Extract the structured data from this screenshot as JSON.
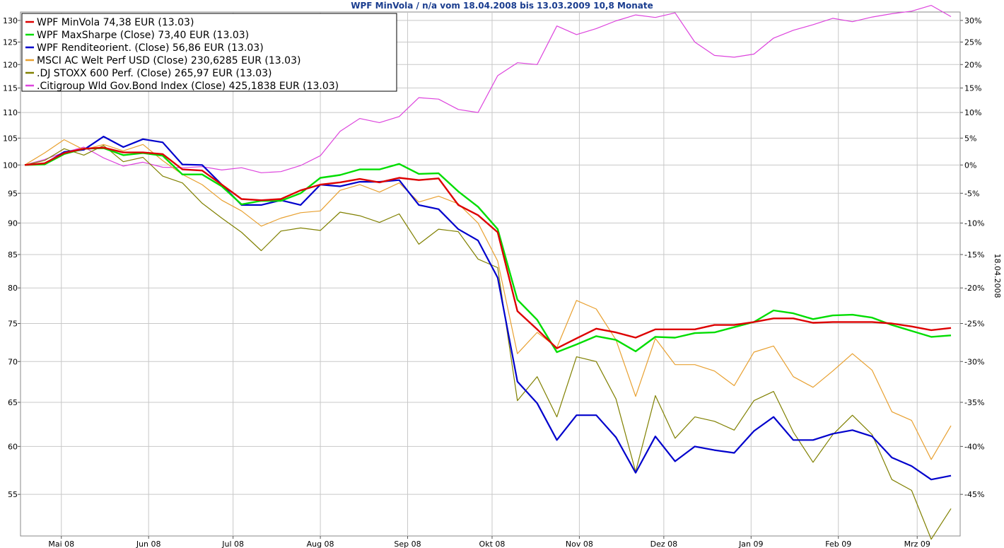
{
  "chart_data": {
    "type": "line",
    "title": "WPF MinVola / n/a vom 18.04.2008 bis 13.03.2009 10,8 Monate",
    "right_axis_label": "18.04.2008",
    "x_ticks": [
      "Mai 08",
      "Jun 08",
      "Jul 08",
      "Aug 08",
      "Sep 08",
      "Okt 08",
      "Nov 08",
      "Dez 08",
      "Jan 09",
      "Feb 09",
      "Mrz 09"
    ],
    "ylim": [
      51,
      132
    ],
    "y_scale": "log",
    "y_ticks": [
      55,
      60,
      65,
      70,
      75,
      80,
      85,
      90,
      95,
      100,
      105,
      110,
      115,
      120,
      125,
      130
    ],
    "y_right_ticks": [
      "-45%",
      "-40%",
      "-35%",
      "-30%",
      "-25%",
      "-20%",
      "-15%",
      "-10%",
      "-5%",
      "0%",
      "5%",
      "10%",
      "15%",
      "20%",
      "25%",
      "30%"
    ],
    "grid": true,
    "legend_position": "top-left",
    "x": [
      "2008-04-18",
      "2008-04-25",
      "2008-05-02",
      "2008-05-09",
      "2008-05-16",
      "2008-05-23",
      "2008-05-30",
      "2008-06-06",
      "2008-06-13",
      "2008-06-20",
      "2008-06-27",
      "2008-07-04",
      "2008-07-11",
      "2008-07-18",
      "2008-07-25",
      "2008-08-01",
      "2008-08-08",
      "2008-08-15",
      "2008-08-22",
      "2008-08-29",
      "2008-09-05",
      "2008-09-12",
      "2008-09-19",
      "2008-09-26",
      "2008-10-03",
      "2008-10-10",
      "2008-10-17",
      "2008-10-24",
      "2008-10-31",
      "2008-11-07",
      "2008-11-14",
      "2008-11-21",
      "2008-11-28",
      "2008-12-05",
      "2008-12-12",
      "2008-12-19",
      "2008-12-26",
      "2009-01-02",
      "2009-01-09",
      "2009-01-16",
      "2009-01-23",
      "2009-01-30",
      "2009-02-06",
      "2009-02-13",
      "2009-02-20",
      "2009-02-27",
      "2009-03-06",
      "2009-03-13"
    ],
    "series": [
      {
        "name": "WPF MinVola 74,38 EUR (13.03)",
        "color": "#dd0000",
        "width": 2.4,
        "values": [
          100,
          100.3,
          102.2,
          103,
          103.2,
          102.3,
          102.3,
          102,
          99.2,
          99,
          96.5,
          94,
          93.8,
          94,
          95.5,
          96.5,
          96.9,
          97.5,
          96.9,
          97.7,
          97.3,
          97.6,
          93,
          91.3,
          88.5,
          76.7,
          74.2,
          71.7,
          73,
          74.3,
          73.8,
          73.1,
          74.2,
          74.2,
          74.2,
          74.8,
          74.8,
          75.2,
          75.7,
          75.7,
          75.1,
          75.2,
          75.2,
          75.2,
          75,
          74.6,
          74.1,
          74.4
        ]
      },
      {
        "name": "WPF MaxSharpe (Close) 73,40 EUR (13.03)",
        "color": "#00dd00",
        "width": 2.4,
        "values": [
          100,
          100.1,
          102,
          103,
          103.1,
          101.8,
          102.2,
          101.7,
          98.3,
          98.3,
          96.2,
          93.1,
          93.7,
          93.7,
          95,
          97.7,
          98.2,
          99.2,
          99.2,
          100.2,
          98.4,
          98.5,
          95.3,
          92.7,
          89,
          78.3,
          75.5,
          71.2,
          72.2,
          73.3,
          72.8,
          71.3,
          73.2,
          73.1,
          73.7,
          73.8,
          74.5,
          75.2,
          76.8,
          76.4,
          75.6,
          76.1,
          76.2,
          75.8,
          74.8,
          74,
          73.2,
          73.4
        ]
      },
      {
        "name": "WPF Renditeorient. (Close) 56,86 EUR (13.03)",
        "color": "#0000cc",
        "width": 2.2,
        "values": [
          100,
          100.2,
          102.4,
          102.8,
          105.3,
          103.3,
          104.8,
          104.2,
          100.1,
          100,
          96.5,
          93,
          93,
          93.8,
          93,
          96.5,
          96.2,
          97,
          97,
          97.3,
          93,
          92.3,
          89,
          87.2,
          81.5,
          67.5,
          64.9,
          60.7,
          63.5,
          63.5,
          61,
          57.2,
          61.1,
          58.4,
          60,
          59.6,
          59.3,
          61.7,
          63.3,
          60.7,
          60.7,
          61.4,
          61.8,
          61.1,
          58.8,
          57.9,
          56.5,
          56.9
        ]
      },
      {
        "name": "MSCI AC Welt Perf USD (Close) 230,6285 EUR (13.03)",
        "color": "#e8a030",
        "width": 1.2,
        "values": [
          100,
          102.2,
          104.7,
          102.8,
          103.8,
          102.6,
          103.8,
          100.8,
          98.3,
          96.5,
          93.8,
          92,
          89.5,
          90.8,
          91.7,
          92,
          95.5,
          96.5,
          95.2,
          96.8,
          93.5,
          94.5,
          93.2,
          90,
          84,
          71,
          73.8,
          71.8,
          78.2,
          77,
          72.8,
          65.7,
          73,
          69.6,
          69.6,
          68.8,
          67,
          71.2,
          72,
          68.1,
          66.8,
          68.8,
          71,
          68.9,
          63.9,
          62.9,
          58.6,
          62.3
        ]
      },
      {
        "name": ".DJ STOXX 600 Perf. (Close) 265,97 EUR (13.03)",
        "color": "#808000",
        "width": 1.2,
        "values": [
          100,
          100.8,
          103,
          101.8,
          103.6,
          100.6,
          101.4,
          98,
          96.8,
          93.3,
          90.8,
          88.5,
          85.6,
          88.7,
          89.2,
          88.8,
          91.8,
          91.2,
          90.1,
          91.5,
          86.6,
          89,
          88.6,
          84.3,
          83,
          65.2,
          68.1,
          63.3,
          70.6,
          70,
          65.4,
          57.3,
          65.8,
          60.9,
          63.3,
          62.8,
          61.8,
          65.2,
          66.3,
          61.6,
          58.3,
          61.3,
          63.5,
          61.3,
          56.5,
          55.4,
          50.7,
          53.6
        ]
      },
      {
        "name": ".Citigroup Wld Gov.Bond Index (Close) 425,1838 EUR (13.03)",
        "color": "#dd44dd",
        "width": 1.2,
        "values": [
          100,
          101,
          102.3,
          103.3,
          101.3,
          99.8,
          100.5,
          99.6,
          99.5,
          99.7,
          99.1,
          99.5,
          98.6,
          98.8,
          99.9,
          101.7,
          106.3,
          108.8,
          108,
          109.2,
          113,
          112.7,
          110.6,
          110,
          117.6,
          120.4,
          120,
          128.7,
          126.7,
          128.1,
          129.9,
          131.3,
          130.7,
          131.8,
          125,
          122,
          121.6,
          122.3,
          125.9,
          127.7,
          129,
          130.5,
          129.7,
          130.8,
          131.6,
          132.2,
          133.6,
          130.9
        ]
      }
    ]
  }
}
